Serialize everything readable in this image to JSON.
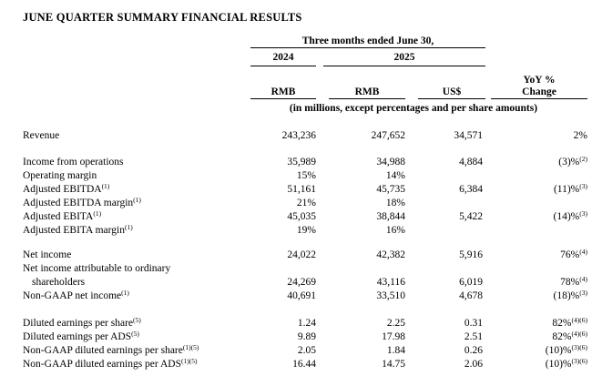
{
  "title": "JUNE QUARTER SUMMARY FINANCIAL RESULTS",
  "table": {
    "col_group_header": "Three months ended June 30,",
    "year_2024": "2024",
    "year_2025": "2025",
    "col_headers": {
      "rmb_2024": "RMB",
      "rmb_2025": "RMB",
      "usd_2025": "US$",
      "yoy_line1": "YoY %",
      "yoy_line2": "Change"
    },
    "units_note": "(in millions, except percentages and per share amounts)",
    "rows": [
      {
        "label": "Revenue",
        "label_sup": "",
        "rmb_2024": "243,236",
        "rmb_2025": "247,652",
        "usd": "34,571",
        "yoy": "2%",
        "yoy_sup": ""
      },
      {
        "label": "Income from operations",
        "label_sup": "",
        "rmb_2024": "35,989",
        "rmb_2025": "34,988",
        "usd": "4,884",
        "yoy": "(3)%",
        "yoy_sup": "(2)"
      },
      {
        "label": "Operating margin",
        "label_sup": "",
        "rmb_2024": "15%",
        "rmb_2025": "14%",
        "usd": "",
        "yoy": "",
        "yoy_sup": ""
      },
      {
        "label": "Adjusted EBITDA",
        "label_sup": "(1)",
        "rmb_2024": "51,161",
        "rmb_2025": "45,735",
        "usd": "6,384",
        "yoy": "(11)%",
        "yoy_sup": "(3)"
      },
      {
        "label": "Adjusted EBITDA margin",
        "label_sup": "(1)",
        "rmb_2024": "21%",
        "rmb_2025": "18%",
        "usd": "",
        "yoy": "",
        "yoy_sup": ""
      },
      {
        "label": "Adjusted EBITA",
        "label_sup": "(1)",
        "rmb_2024": "45,035",
        "rmb_2025": "38,844",
        "usd": "5,422",
        "yoy": "(14)%",
        "yoy_sup": "(3)"
      },
      {
        "label": "Adjusted EBITA margin",
        "label_sup": "(1)",
        "rmb_2024": "19%",
        "rmb_2025": "16%",
        "usd": "",
        "yoy": "",
        "yoy_sup": ""
      },
      {
        "label": "Net income",
        "label_sup": "",
        "rmb_2024": "24,022",
        "rmb_2025": "42,382",
        "usd": "5,916",
        "yoy": "76%",
        "yoy_sup": "(4)"
      },
      {
        "label": "Net income attributable to ordinary",
        "label_sup": "",
        "rmb_2024": "",
        "rmb_2025": "",
        "usd": "",
        "yoy": "",
        "yoy_sup": ""
      },
      {
        "label": "shareholders",
        "label_sup": "",
        "rmb_2024": "24,269",
        "rmb_2025": "43,116",
        "usd": "6,019",
        "yoy": "78%",
        "yoy_sup": "(4)"
      },
      {
        "label": "Non-GAAP net income",
        "label_sup": "(1)",
        "rmb_2024": "40,691",
        "rmb_2025": "33,510",
        "usd": "4,678",
        "yoy": "(18)%",
        "yoy_sup": "(3)"
      },
      {
        "label": "Diluted earnings per share",
        "label_sup": "(5)",
        "rmb_2024": "1.24",
        "rmb_2025": "2.25",
        "usd": "0.31",
        "yoy": "82%",
        "yoy_sup": "(4)(6)"
      },
      {
        "label": "Diluted earnings per ADS",
        "label_sup": "(5)",
        "rmb_2024": "9.89",
        "rmb_2025": "17.98",
        "usd": "2.51",
        "yoy": "82%",
        "yoy_sup": "(4)(6)"
      },
      {
        "label": "Non-GAAP diluted earnings per share",
        "label_sup": "(1)(5)",
        "rmb_2024": "2.05",
        "rmb_2025": "1.84",
        "usd": "0.26",
        "yoy": "(10)%",
        "yoy_sup": "(3)(6)"
      },
      {
        "label": "Non-GAAP diluted earnings per ADS",
        "label_sup": "(1)(5)",
        "rmb_2024": "16.44",
        "rmb_2025": "14.75",
        "usd": "2.06",
        "yoy": "(10)%",
        "yoy_sup": "(3)(6)"
      }
    ]
  }
}
